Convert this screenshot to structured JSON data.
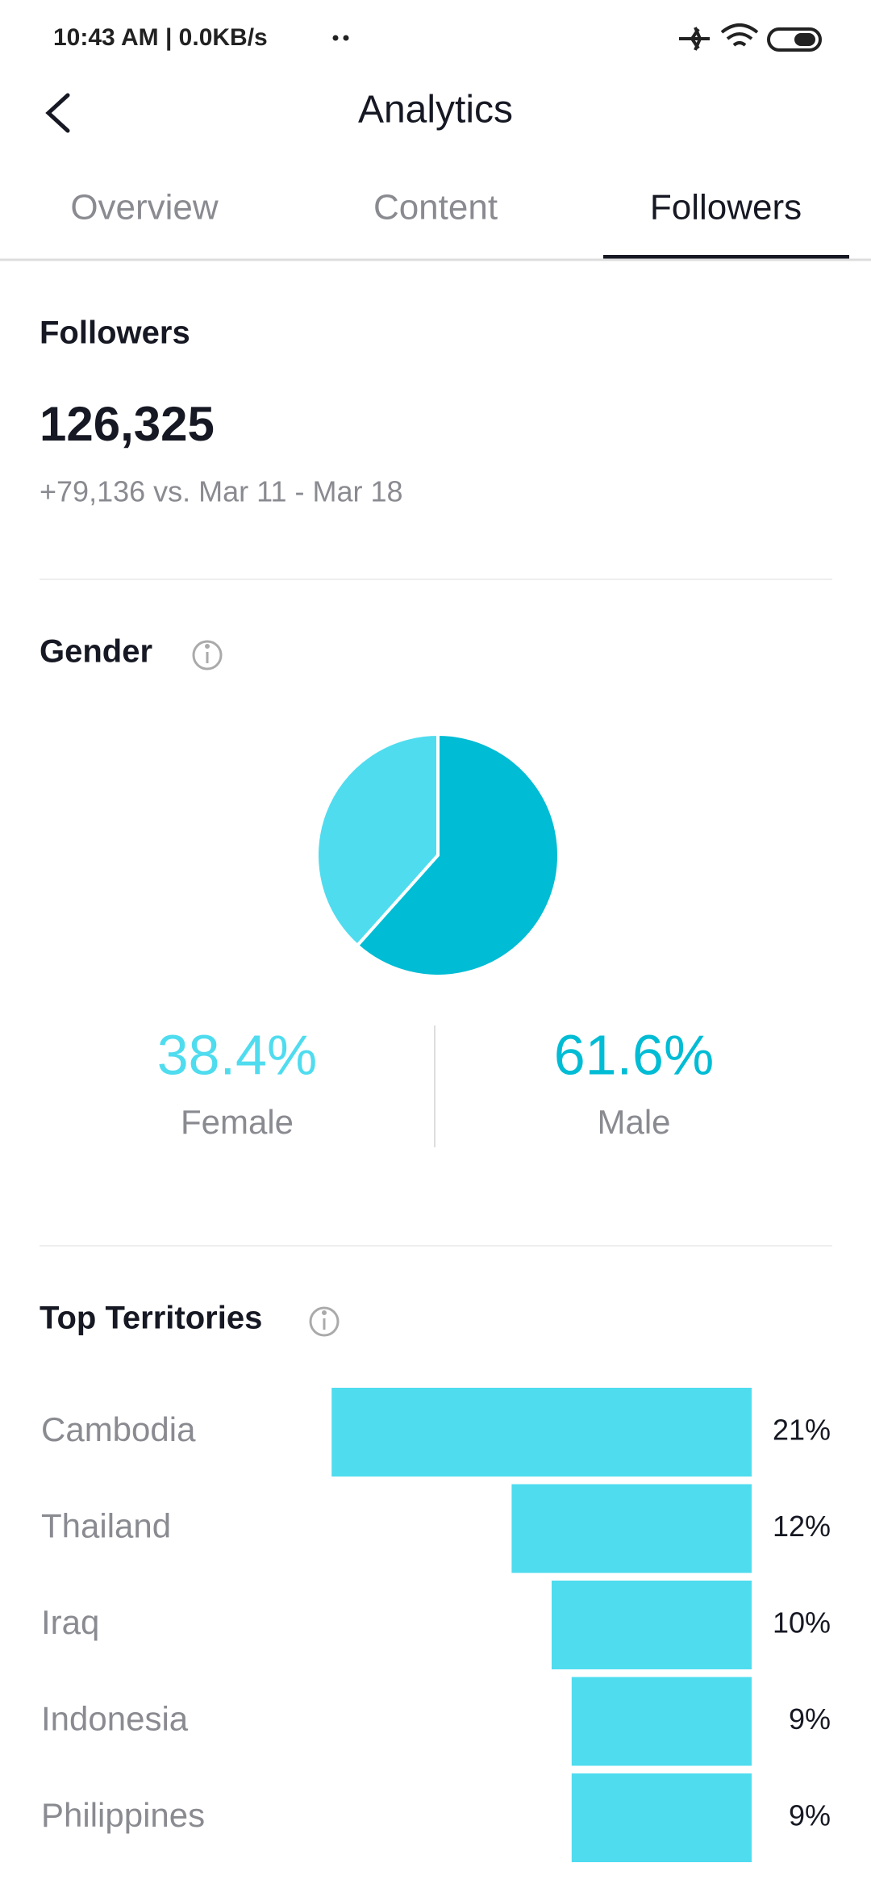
{
  "status_bar": {
    "left": "10:43 AM | 0.0KB/s"
  },
  "header": {
    "title": "Analytics"
  },
  "tabs": {
    "items": [
      "Overview",
      "Content",
      "Followers"
    ],
    "active": 2
  },
  "followers": {
    "title": "Followers",
    "total": "126,325",
    "change": "+79,136 vs. Mar 11 - Mar 18"
  },
  "chart_data": [
    {
      "type": "pie",
      "title": "Gender",
      "categories": [
        "Female",
        "Male"
      ],
      "values": [
        38.4,
        61.6
      ],
      "value_labels": [
        "38.4%",
        "61.6%"
      ],
      "colors": [
        "#4fdcef",
        "#00bcd4"
      ]
    },
    {
      "type": "bar",
      "orientation": "horizontal",
      "title": "Top Territories",
      "categories": [
        "Cambodia",
        "Thailand",
        "Iraq",
        "Indonesia",
        "Philippines"
      ],
      "values": [
        21,
        12,
        10,
        9,
        9
      ],
      "value_labels": [
        "21%",
        "12%",
        "10%",
        "9%",
        "9%"
      ],
      "color": "#4fdcef"
    }
  ]
}
